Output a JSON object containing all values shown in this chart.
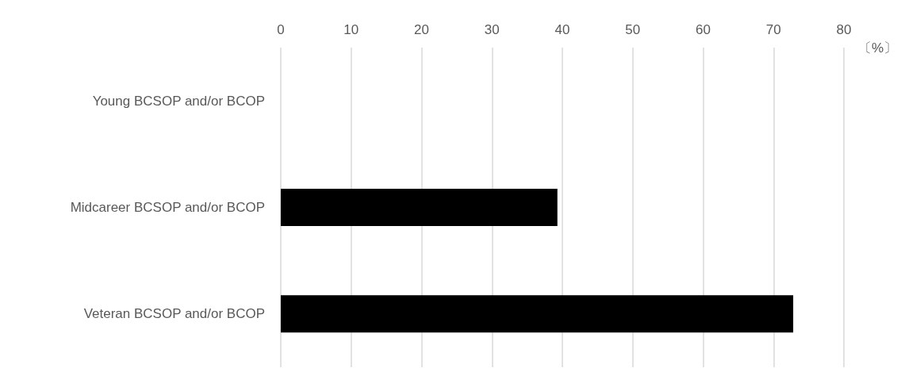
{
  "chart_data": {
    "type": "bar",
    "orientation": "horizontal",
    "xlabel": "〔%〕",
    "categories": [
      "Young BCSOP and/or BCOP",
      "Midcareer BCSOP and/or BCOP",
      "Veteran BCSOP and/or BCOP"
    ],
    "values": [
      0,
      39.3,
      72.8
    ],
    "color": "#000000",
    "xlim": [
      0,
      80
    ],
    "xticks": [
      0,
      10,
      20,
      30,
      40,
      50,
      60,
      70,
      80
    ],
    "grid": "x"
  }
}
